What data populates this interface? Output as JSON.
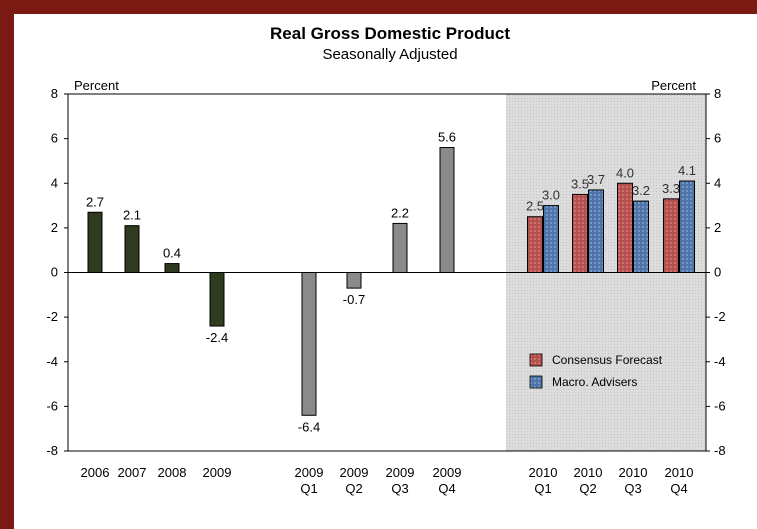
{
  "chart_data": {
    "type": "bar",
    "title": "Real Gross Domestic Product",
    "subtitle": "Seasonally Adjusted",
    "ylabel_left": "Percent",
    "ylabel_right": "Percent",
    "ylim": [
      -8,
      8
    ],
    "yticks": [
      "8",
      "6",
      "4",
      "2",
      "0",
      "-2",
      "-4",
      "-6",
      "-8"
    ],
    "annual": {
      "categories": [
        "2006",
        "2007",
        "2008",
        "2009"
      ],
      "values": [
        2.7,
        2.1,
        0.4,
        -2.4
      ],
      "labels": [
        "2.7",
        "2.1",
        "0.4",
        "-2.4"
      ],
      "color": "#2f3b1e"
    },
    "quarterly": {
      "categories": [
        [
          "2009",
          "Q1"
        ],
        [
          "2009",
          "Q2"
        ],
        [
          "2009",
          "Q3"
        ],
        [
          "2009",
          "Q4"
        ]
      ],
      "values": [
        -6.4,
        -0.7,
        2.2,
        5.6
      ],
      "labels": [
        "-6.4",
        "-0.7",
        "2.2",
        "5.6"
      ],
      "color": "#8a8a8a"
    },
    "forecast": {
      "categories": [
        [
          "2010",
          "Q1"
        ],
        [
          "2010",
          "Q2"
        ],
        [
          "2010",
          "Q3"
        ],
        [
          "2010",
          "Q4"
        ]
      ],
      "series": [
        {
          "name": "Consensus Forecast",
          "values": [
            2.5,
            3.5,
            4.0,
            3.3
          ],
          "labels": [
            "2.5",
            "3.5",
            "4.0",
            "3.3"
          ],
          "color": "#b5504e"
        },
        {
          "name": "Macro. Advisers",
          "values": [
            3.0,
            3.7,
            3.2,
            4.1
          ],
          "labels": [
            "3.0",
            "3.7",
            "3.2",
            "4.1"
          ],
          "color": "#4e74a8"
        }
      ],
      "shaded_region": true
    },
    "legend_position": "lower-right inside shaded forecast region",
    "grid": false
  }
}
